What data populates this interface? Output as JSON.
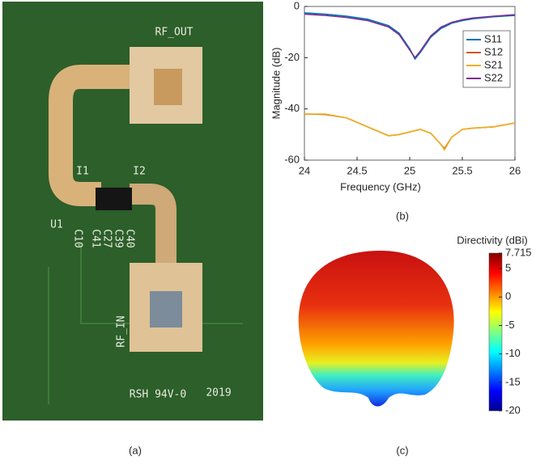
{
  "photo": {
    "labels": [
      "RF_OUT",
      "U1",
      "RF_IN",
      "RSH 94V-0",
      "2019",
      "I1",
      "I2",
      "C41",
      "C27",
      "C39",
      "C40",
      "C10"
    ]
  },
  "chart_data": {
    "type": "line",
    "xlabel": "Frequency (GHz)",
    "ylabel": "Magnitude (dB)",
    "x": [
      24,
      24.2,
      24.4,
      24.6,
      24.8,
      24.9,
      25,
      25.05,
      25.1,
      25.2,
      25.3,
      25.33,
      25.4,
      25.5,
      25.6,
      25.8,
      26
    ],
    "series": [
      {
        "name": "S11",
        "color": "#0072bd",
        "values": [
          -2.5,
          -3,
          -3.8,
          -5,
          -7.5,
          -10.5,
          -16.5,
          -20.5,
          -18,
          -12,
          -8.5,
          -8,
          -6.5,
          -5.5,
          -4.8,
          -4,
          -3.5
        ]
      },
      {
        "name": "S12",
        "color": "#d95319",
        "values": [
          -42,
          -42.2,
          -43.5,
          -47,
          -50.5,
          -50,
          -49,
          -48.5,
          -48,
          -49.5,
          -54,
          -55.5,
          -51,
          -48,
          -47.5,
          -47,
          -45.5
        ]
      },
      {
        "name": "S21",
        "color": "#edb120",
        "values": [
          -42,
          -42,
          -43.5,
          -47,
          -50.5,
          -50,
          -49,
          -48.5,
          -48,
          -49.5,
          -54,
          -56,
          -51,
          -48,
          -47.5,
          -47,
          -45.5
        ]
      },
      {
        "name": "S22",
        "color": "#7e2f8e",
        "values": [
          -3,
          -3.5,
          -4.3,
          -5.5,
          -8,
          -11,
          -17,
          -20,
          -17.5,
          -11.5,
          -8,
          -7.5,
          -6.2,
          -5.2,
          -4.5,
          -3.8,
          -3.2
        ]
      }
    ],
    "xlim": [
      24,
      26
    ],
    "xticks": [
      24,
      24.5,
      25,
      25.5,
      26
    ],
    "ylim": [
      -60,
      0
    ],
    "yticks": [
      -60,
      -40,
      -20,
      0
    ],
    "grid": false,
    "legend": "right"
  },
  "pattern": {
    "colorbar": {
      "label": "Directivity (dBi)",
      "lim": [
        -20,
        7.715
      ],
      "ticks": [
        7.715,
        5,
        0,
        -5,
        -10,
        -15,
        -20
      ]
    }
  },
  "captions": [
    "(a)",
    "(b)",
    "(c)"
  ]
}
